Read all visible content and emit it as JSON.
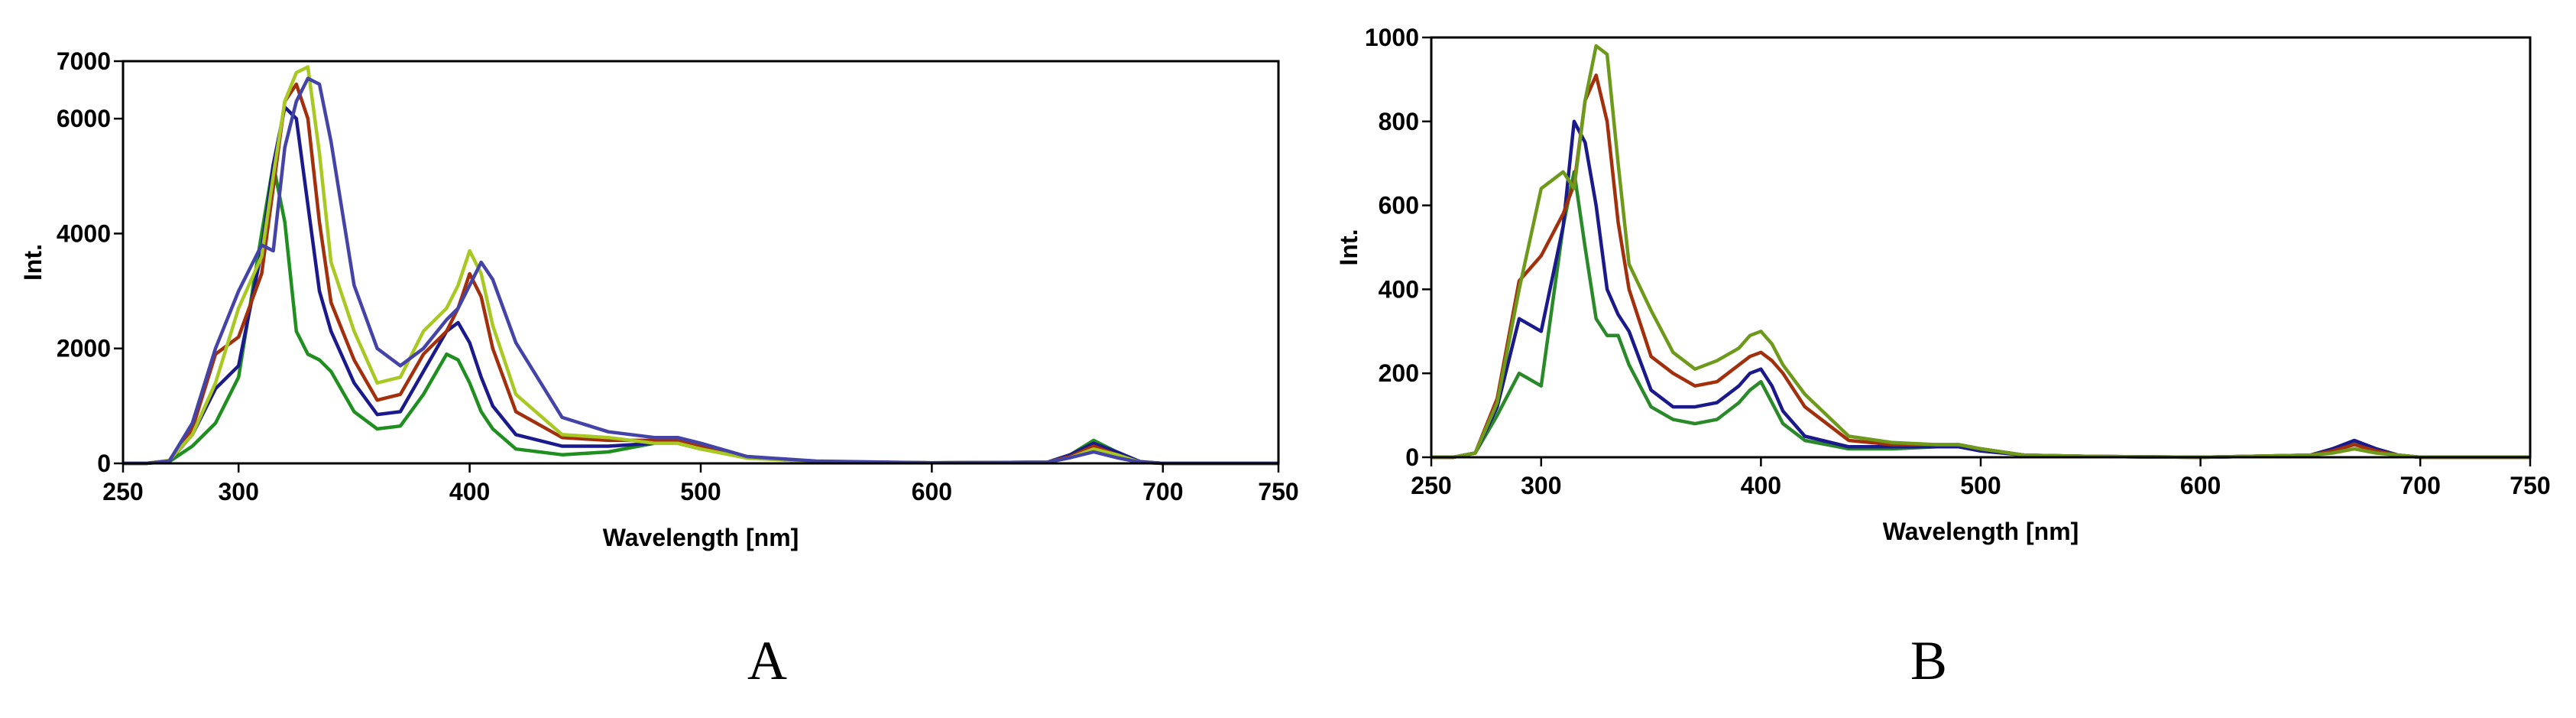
{
  "chart_data": [
    {
      "type": "line",
      "title": "A",
      "x_label": "Wavelength [nm]",
      "y_label": "Int.",
      "x": [
        250,
        260,
        270,
        280,
        290,
        300,
        310,
        315,
        320,
        325,
        330,
        335,
        340,
        350,
        360,
        370,
        380,
        390,
        395,
        400,
        405,
        410,
        420,
        440,
        460,
        480,
        490,
        500,
        520,
        550,
        600,
        650,
        660,
        670,
        680,
        690,
        700,
        750
      ],
      "xlim": [
        250,
        750
      ],
      "xticks": [
        250,
        300,
        400,
        500,
        600,
        700,
        750
      ],
      "ylim": [
        0,
        7000
      ],
      "yticks": [
        0,
        2000,
        4000,
        6000,
        7000
      ],
      "series": [
        {
          "color": "#1f8f1f",
          "values": [
            0,
            0,
            30,
            300,
            700,
            1500,
            4000,
            5200,
            4200,
            2300,
            1900,
            1800,
            1600,
            900,
            600,
            650,
            1200,
            1900,
            1800,
            1400,
            900,
            600,
            250,
            150,
            200,
            350,
            350,
            250,
            100,
            30,
            10,
            20,
            150,
            400,
            200,
            30,
            0,
            0
          ]
        },
        {
          "color": "#1a1a8c",
          "values": [
            0,
            0,
            40,
            500,
            1300,
            1700,
            3700,
            5200,
            6200,
            6000,
            4500,
            3000,
            2300,
            1400,
            850,
            900,
            1600,
            2300,
            2450,
            2100,
            1500,
            1000,
            500,
            300,
            300,
            350,
            400,
            300,
            100,
            30,
            10,
            20,
            150,
            350,
            200,
            30,
            0,
            0
          ]
        },
        {
          "color": "#a3300c",
          "values": [
            0,
            0,
            50,
            600,
            1900,
            2200,
            3300,
            4800,
            6300,
            6600,
            6000,
            4200,
            2800,
            1800,
            1100,
            1200,
            1900,
            2300,
            2700,
            3300,
            2900,
            2000,
            900,
            450,
            400,
            400,
            400,
            300,
            100,
            30,
            10,
            20,
            120,
            300,
            150,
            20,
            0,
            0
          ]
        },
        {
          "color": "#a8c822",
          "values": [
            0,
            0,
            50,
            500,
            1400,
            2700,
            3600,
            5000,
            6300,
            6800,
            6900,
            5400,
            3500,
            2300,
            1400,
            1500,
            2300,
            2700,
            3100,
            3700,
            3300,
            2400,
            1200,
            500,
            450,
            350,
            350,
            250,
            90,
            30,
            10,
            20,
            100,
            250,
            150,
            20,
            0,
            0
          ]
        },
        {
          "color": "#4343a8",
          "values": [
            0,
            0,
            40,
            700,
            2000,
            3000,
            3800,
            3700,
            5500,
            6300,
            6700,
            6600,
            5600,
            3100,
            2000,
            1700,
            2000,
            2500,
            2700,
            3100,
            3500,
            3200,
            2100,
            800,
            550,
            450,
            450,
            350,
            120,
            40,
            10,
            20,
            100,
            200,
            100,
            20,
            0,
            0
          ]
        }
      ]
    },
    {
      "type": "line",
      "title": "B",
      "x_label": "Wavelength [nm]",
      "y_label": "Int.",
      "x": [
        250,
        260,
        270,
        280,
        290,
        300,
        310,
        315,
        320,
        325,
        330,
        335,
        340,
        350,
        360,
        370,
        380,
        390,
        395,
        400,
        405,
        410,
        420,
        440,
        460,
        480,
        490,
        500,
        520,
        550,
        600,
        650,
        660,
        670,
        680,
        690,
        700,
        750
      ],
      "xlim": [
        250,
        750
      ],
      "xticks": [
        250,
        300,
        400,
        500,
        600,
        700,
        750
      ],
      "ylim": [
        0,
        1000
      ],
      "yticks": [
        0,
        200,
        400,
        600,
        800,
        1000
      ],
      "series": [
        {
          "color": "#2a8a2a",
          "values": [
            0,
            0,
            10,
            100,
            200,
            170,
            550,
            680,
            500,
            330,
            290,
            290,
            220,
            120,
            90,
            80,
            90,
            130,
            160,
            180,
            130,
            80,
            40,
            20,
            20,
            25,
            25,
            20,
            5,
            2,
            0,
            5,
            20,
            35,
            20,
            5,
            0,
            0
          ]
        },
        {
          "color": "#1a1a8c",
          "values": [
            0,
            0,
            10,
            120,
            330,
            300,
            550,
            800,
            750,
            600,
            400,
            340,
            300,
            160,
            120,
            120,
            130,
            170,
            200,
            210,
            170,
            110,
            50,
            25,
            25,
            25,
            25,
            15,
            5,
            2,
            0,
            5,
            20,
            40,
            20,
            5,
            0,
            0
          ]
        },
        {
          "color": "#a3300c",
          "values": [
            0,
            0,
            10,
            140,
            420,
            480,
            580,
            650,
            850,
            910,
            800,
            560,
            400,
            240,
            200,
            170,
            180,
            220,
            240,
            250,
            230,
            200,
            120,
            40,
            30,
            30,
            30,
            20,
            5,
            2,
            0,
            5,
            15,
            30,
            15,
            5,
            0,
            0
          ]
        },
        {
          "color": "#6e9a1c",
          "values": [
            0,
            0,
            10,
            130,
            400,
            640,
            680,
            640,
            850,
            980,
            960,
            700,
            460,
            350,
            250,
            210,
            230,
            260,
            290,
            300,
            270,
            220,
            150,
            50,
            35,
            30,
            30,
            20,
            5,
            2,
            0,
            5,
            10,
            20,
            10,
            5,
            0,
            0
          ]
        }
      ]
    }
  ]
}
